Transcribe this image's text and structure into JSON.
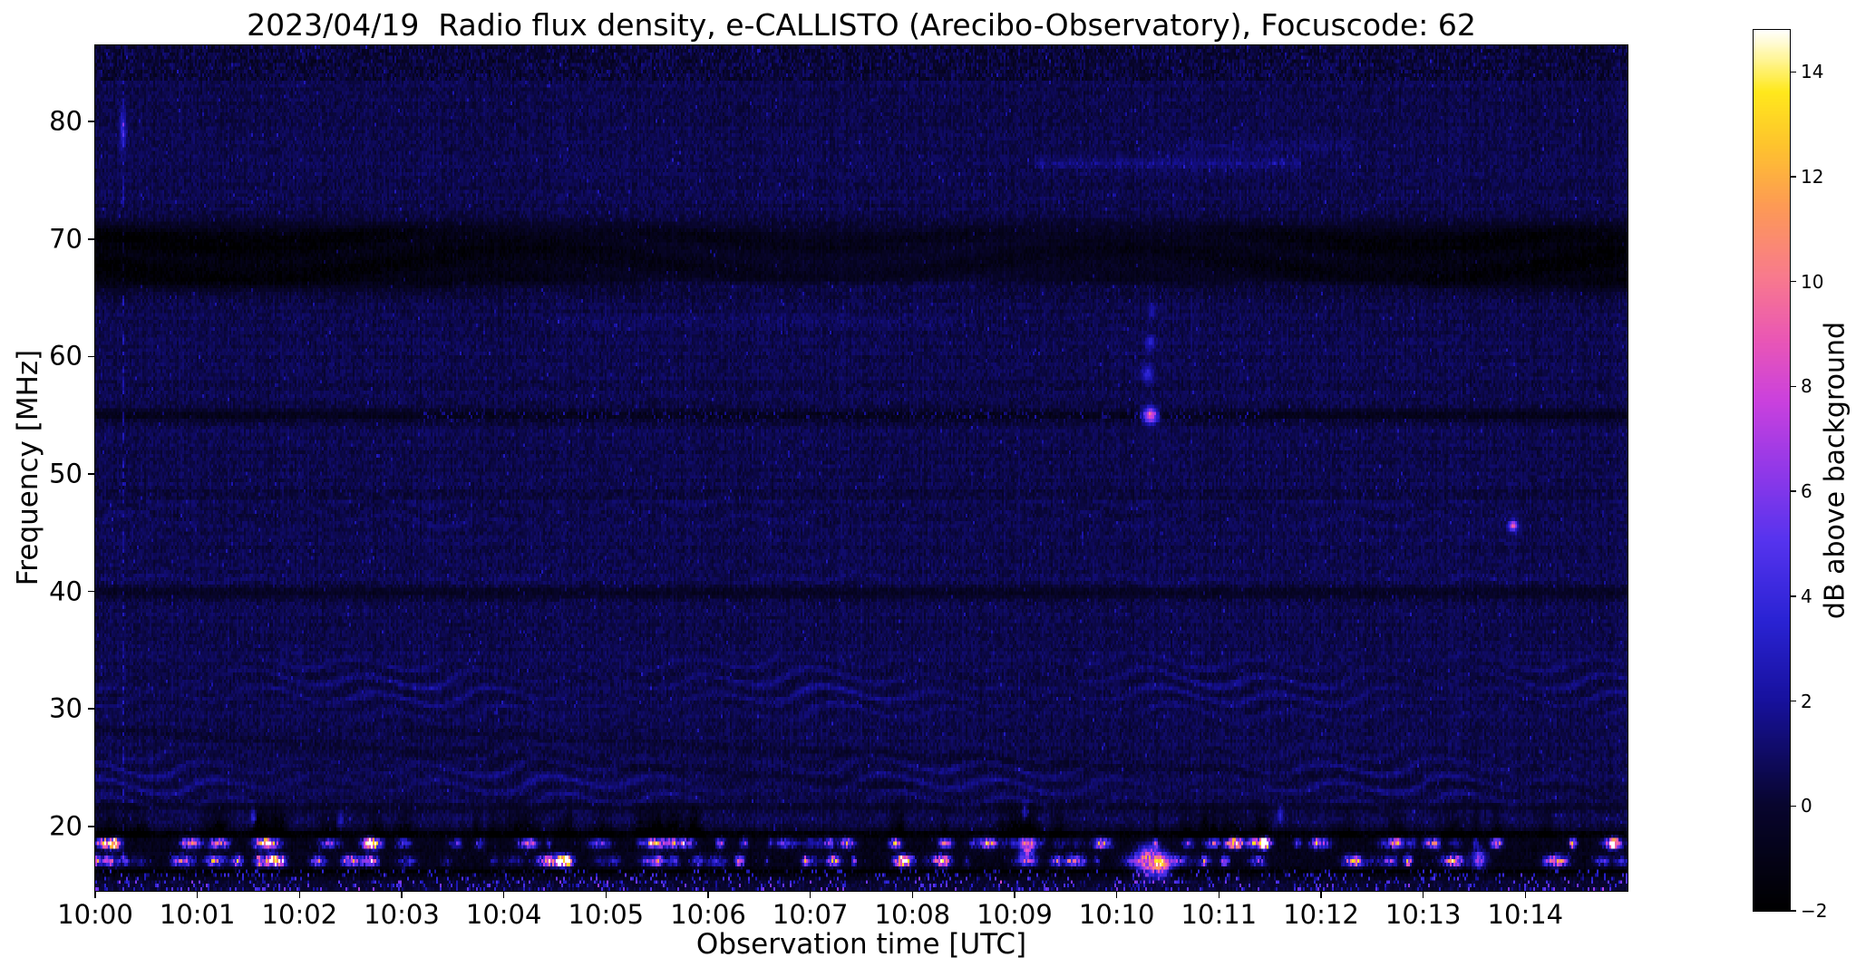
{
  "chart_data": {
    "type": "heatmap",
    "title": "2023/04/19  Radio flux density, e-CALLISTO (Arecibo-Observatory), Focuscode: 62",
    "xlabel": "Observation time [UTC]",
    "ylabel": "Frequency [MHz]",
    "colorbar_label": "dB above background",
    "x_tick_labels": [
      "10:00",
      "10:01",
      "10:02",
      "10:03",
      "10:04",
      "10:05",
      "10:06",
      "10:07",
      "10:08",
      "10:09",
      "10:10",
      "10:11",
      "10:12",
      "10:13",
      "10:14"
    ],
    "x_tick_minutes": [
      0,
      1,
      2,
      3,
      4,
      5,
      6,
      7,
      8,
      9,
      10,
      11,
      12,
      13,
      14
    ],
    "xlim_minutes": [
      0,
      15
    ],
    "y_ticks": [
      20,
      30,
      40,
      50,
      60,
      70,
      80
    ],
    "ylim": [
      14.5,
      86.5
    ],
    "clim": [
      -2,
      14.8
    ],
    "colorbar_ticks": [
      "−2",
      "0",
      "2",
      "4",
      "6",
      "8",
      "10",
      "12",
      "14"
    ],
    "colorbar_tick_values": [
      -2,
      0,
      2,
      4,
      6,
      8,
      10,
      12,
      14
    ],
    "legend_position": "right-colorbar",
    "grid_lines": "off",
    "colormap_stops": [
      [
        0.0,
        "#000000"
      ],
      [
        0.12,
        "#08052e"
      ],
      [
        0.24,
        "#17119e"
      ],
      [
        0.33,
        "#2a23d4"
      ],
      [
        0.42,
        "#5633ee"
      ],
      [
        0.5,
        "#9138e8"
      ],
      [
        0.58,
        "#cb41dd"
      ],
      [
        0.65,
        "#ea57b4"
      ],
      [
        0.72,
        "#f87a8d"
      ],
      [
        0.8,
        "#fd9a55"
      ],
      [
        0.87,
        "#fec42d"
      ],
      [
        0.93,
        "#ffe81c"
      ],
      [
        0.97,
        "#fff6a0"
      ],
      [
        1.0,
        "#ffffff"
      ]
    ],
    "grid": {
      "nx": 845,
      "ny": 240
    },
    "features": {
      "seed": 20230419,
      "background": {
        "base_db": 0.55,
        "speckle_db": 0.5,
        "row_noise_db": 0.15,
        "col_noise_db": 0.18,
        "sparkle_rate": 0.015,
        "sparkle_db": 2.0
      },
      "top_mottle": {
        "f_min": 83.5,
        "depth_db": 0.4,
        "extra_speckle_db": 0.8
      },
      "dark_bands": [
        {
          "name": "absorption-band-66-71MHz",
          "f_center": 68.5,
          "half_width": 2.7,
          "depth_db": 2.3,
          "flat": true,
          "mid_relief": 0.5,
          "texture": true
        },
        {
          "name": "dark-line-55MHz",
          "f_center": 55.0,
          "half_width": 0.4,
          "depth_db": 1.4
        },
        {
          "name": "dark-line-48MHz",
          "f_center": 48.3,
          "half_width": 0.3,
          "depth_db": 0.4
        },
        {
          "name": "dark-line-40MHz",
          "f_center": 39.9,
          "half_width": 0.4,
          "depth_db": 1.0
        },
        {
          "name": "dark-line-21MHz",
          "f_center": 21.6,
          "half_width": 0.35,
          "depth_db": 0.6
        },
        {
          "name": "rfi-band-dark",
          "f_center": 17.7,
          "half_width": 2.0,
          "depth_db": 1.4,
          "flat": true
        },
        {
          "name": "dark-line-19MHz",
          "f_center": 19.35,
          "half_width": 0.22,
          "depth_db": 1.5
        },
        {
          "name": "dark-line-16MHz",
          "f_center": 16.15,
          "half_width": 0.2,
          "depth_db": 1.2
        }
      ],
      "fringe_zones": [
        {
          "f_min": 20.2,
          "f_max": 35.8,
          "amp_db": 1.15,
          "f_scale": 1.5,
          "warp_amp": 2.4,
          "warp_period_min": 1.1
        },
        {
          "f_min": 40.6,
          "f_max": 47.6,
          "amp_db": 0.55,
          "f_scale": 1.7,
          "warp_amp": 1.3,
          "warp_period_min": 0.85
        },
        {
          "f_min": 49.3,
          "f_max": 54.2,
          "amp_db": 0.22,
          "f_scale": 1.5,
          "warp_amp": 1.0,
          "warp_period_min": 0.95
        },
        {
          "f_min": 56.0,
          "f_max": 63.5,
          "amp_db": 0.15,
          "f_scale": 1.8,
          "warp_amp": 1.1,
          "warp_period_min": 1.2
        }
      ],
      "diagonal_lines": [
        {
          "t0": -0.5,
          "f0": 28.6,
          "t1": 8.0,
          "f1": 23.4,
          "depth_db": 0.5,
          "half_width": 0.28
        },
        {
          "t0": 3.0,
          "f0": 28.2,
          "t1": 15.2,
          "f1": 22.8,
          "depth_db": 0.45,
          "half_width": 0.28
        }
      ],
      "faint_bright_lines": [
        {
          "f": 76.4,
          "t0": 9.2,
          "t1": 11.8,
          "amp_db": 0.8
        },
        {
          "f": 77.8,
          "t0": 10.6,
          "t1": 12.3,
          "amp_db": 0.5
        },
        {
          "f": 66.1,
          "t0": 3.5,
          "t1": 13.0,
          "amp_db": 0.7
        },
        {
          "f": 63.0,
          "t0": 4.5,
          "t1": 8.5,
          "amp_db": 0.35
        }
      ],
      "speckle_lines": [
        {
          "f": 55.0,
          "t0": 3.2,
          "t1": 11.4,
          "rate": 0.3,
          "amp_db": 3.0
        }
      ],
      "bright_points": [
        {
          "t": 10.33,
          "f": 55.0,
          "amp_db": 9.5,
          "st": 0.05,
          "sf": 0.45
        },
        {
          "t": 10.3,
          "f": 58.5,
          "amp_db": 3.0,
          "st": 0.04,
          "sf": 0.5
        },
        {
          "t": 10.33,
          "f": 61.2,
          "amp_db": 2.5,
          "st": 0.035,
          "sf": 0.45
        },
        {
          "t": 10.35,
          "f": 64.0,
          "amp_db": 2.0,
          "st": 0.03,
          "sf": 0.4
        },
        {
          "t": 13.88,
          "f": 45.6,
          "amp_db": 8.5,
          "st": 0.03,
          "sf": 0.3
        },
        {
          "t": 0.27,
          "f": 79.3,
          "amp_db": 3.2,
          "st": 0.02,
          "sf": 1.2
        },
        {
          "t": 1.55,
          "f": 20.8,
          "amp_db": 3.5,
          "st": 0.02,
          "sf": 0.5
        },
        {
          "t": 2.4,
          "f": 20.5,
          "amp_db": 3.0,
          "st": 0.02,
          "sf": 0.5
        },
        {
          "t": 9.1,
          "f": 21.3,
          "amp_db": 3.5,
          "st": 0.02,
          "sf": 0.5
        },
        {
          "t": 11.6,
          "f": 21.0,
          "amp_db": 3.0,
          "st": 0.02,
          "sf": 0.5
        }
      ],
      "vertical_streaks": [
        {
          "t": 0.27,
          "f_min": 16.0,
          "f_max": 84.5,
          "amp_db": 2.2,
          "dashed": true
        }
      ],
      "rfi_band": {
        "lines_f": [
          17.05,
          18.55
        ],
        "line_half_width": 0.3,
        "burst_count": 170,
        "burst_amp_min_db": 2.5,
        "burst_amp_max_db": 13.5,
        "spike_rate": 0.3,
        "spike_f_max": 22.2,
        "big_bursts": [
          {
            "t": 10.32,
            "f": 17.1,
            "amp_db": 12,
            "st": 0.1,
            "sf": 0.8
          },
          {
            "t": 10.45,
            "f": 16.6,
            "amp_db": 9,
            "st": 0.06,
            "sf": 0.6
          },
          {
            "t": 9.12,
            "f": 18.2,
            "amp_db": 9,
            "st": 0.05,
            "sf": 0.7
          },
          {
            "t": 13.55,
            "f": 17.2,
            "amp_db": 8,
            "st": 0.05,
            "sf": 0.6
          }
        ]
      },
      "bottom_edge": {
        "f_max": 16.3,
        "extra_depth_db": 0.5,
        "speckle_rate": 0.2,
        "speckle_db": 6
      }
    }
  }
}
